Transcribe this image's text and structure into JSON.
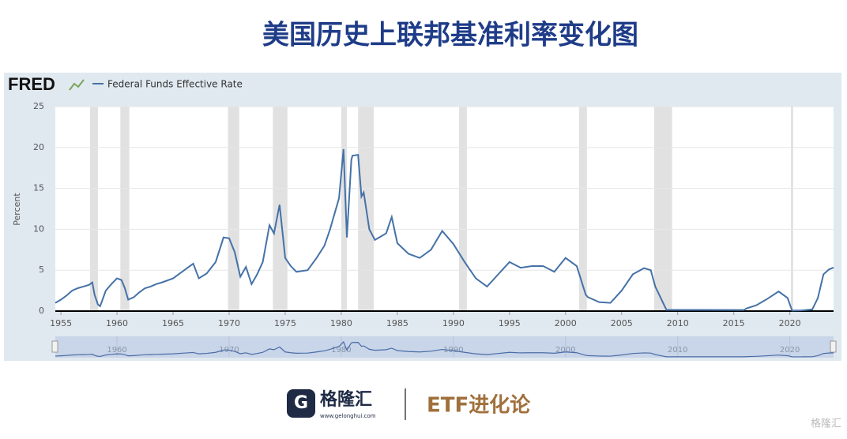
{
  "chart_data": {
    "type": "line",
    "title": "美国历史上联邦基准利率变化图",
    "source_logo": "FRED",
    "y_label": "Percent",
    "x": [
      1954.5,
      1955,
      1955.5,
      1956,
      1956.5,
      1957,
      1957.5,
      1957.8,
      1958.0,
      1958.3,
      1958.5,
      1959,
      1959.5,
      1960,
      1960.4,
      1960.7,
      1961,
      1961.5,
      1962,
      1962.5,
      1963,
      1963.5,
      1964,
      1965,
      1966,
      1966.8,
      1967.3,
      1968,
      1968.8,
      1969.5,
      1970,
      1970.5,
      1971,
      1971.5,
      1972,
      1972.5,
      1973,
      1973.6,
      1974,
      1974.5,
      1975,
      1975.5,
      1976,
      1977,
      1977.8,
      1978.5,
      1979,
      1979.8,
      1980.2,
      1980.5,
      1980.9,
      1981,
      1981.5,
      1981.8,
      1982,
      1982.5,
      1983,
      1984,
      1984.5,
      1985,
      1986,
      1987,
      1988,
      1989,
      1990,
      1991,
      1992,
      1993,
      1994,
      1995,
      1996,
      1997,
      1998,
      1999,
      2000,
      2001,
      2001.8,
      2002,
      2003,
      2004,
      2005,
      2006,
      2007,
      2007.6,
      2008,
      2008.7,
      2009,
      2010,
      2012,
      2015.9,
      2016.2,
      2017,
      2018,
      2019,
      2019.8,
      2020.2,
      2021,
      2022,
      2022.5,
      2023,
      2023.5,
      2023.9
    ],
    "series": [
      {
        "name": "Federal Funds Effective Rate",
        "color": "#4572a7",
        "values": [
          1.0,
          1.4,
          1.9,
          2.5,
          2.8,
          3.0,
          3.2,
          3.5,
          2.0,
          0.8,
          0.6,
          2.5,
          3.3,
          4.0,
          3.8,
          2.8,
          1.4,
          1.7,
          2.3,
          2.8,
          3.0,
          3.3,
          3.5,
          4.0,
          5.0,
          5.8,
          4.0,
          4.6,
          6.0,
          9.0,
          8.9,
          7.2,
          4.2,
          5.4,
          3.3,
          4.5,
          6.0,
          10.5,
          9.5,
          13.0,
          6.5,
          5.5,
          4.8,
          5.0,
          6.5,
          8.0,
          10.0,
          13.8,
          19.8,
          9.0,
          18.5,
          19.0,
          19.1,
          14.0,
          14.5,
          10.0,
          8.7,
          9.5,
          11.5,
          8.3,
          7.0,
          6.5,
          7.5,
          9.8,
          8.2,
          6.0,
          4.0,
          3.0,
          4.5,
          6.0,
          5.3,
          5.5,
          5.5,
          4.8,
          6.5,
          5.5,
          2.0,
          1.7,
          1.1,
          1.0,
          2.5,
          4.5,
          5.25,
          5.0,
          3.0,
          1.0,
          0.15,
          0.15,
          0.14,
          0.13,
          0.36,
          0.7,
          1.5,
          2.4,
          1.6,
          0.06,
          0.08,
          0.2,
          1.6,
          4.5,
          5.1,
          5.33
        ]
      }
    ],
    "recessions": [
      [
        1957.6,
        1958.3
      ],
      [
        1960.3,
        1961.1
      ],
      [
        1969.9,
        1970.9
      ],
      [
        1973.9,
        1975.2
      ],
      [
        1980.0,
        1980.5
      ],
      [
        1981.5,
        1982.9
      ],
      [
        1990.5,
        1991.2
      ],
      [
        2001.2,
        2001.9
      ],
      [
        2007.9,
        2009.5
      ],
      [
        2020.1,
        2020.3
      ]
    ],
    "xlim": [
      1954.5,
      2023.9
    ],
    "xticks": [
      1955,
      1960,
      1965,
      1970,
      1975,
      1980,
      1985,
      1990,
      1995,
      2000,
      2005,
      2010,
      2015,
      2020
    ],
    "ylim": [
      0,
      25
    ],
    "yticks": [
      0,
      5,
      10,
      15,
      20,
      25
    ],
    "grid": true,
    "navigator_ticks": [
      1960,
      1970,
      1980,
      1990,
      2000,
      2010,
      2020
    ]
  },
  "branding": {
    "logo": "格隆汇",
    "url": "www.gelonghui.com",
    "channel": "ETF进化论",
    "watermark": "格隆汇"
  }
}
